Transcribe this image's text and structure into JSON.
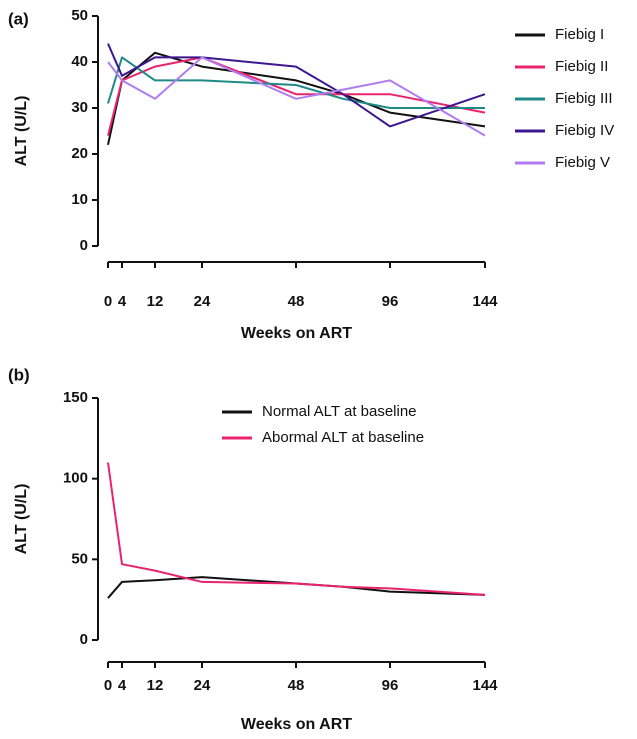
{
  "chart_data": [
    {
      "type": "line",
      "panel_label": "(a)",
      "xlabel": "Weeks on ART",
      "ylabel": "ALT (U/L)",
      "x": [
        0,
        4,
        12,
        24,
        48,
        72,
        96,
        144
      ],
      "xlim": [
        0,
        144
      ],
      "xticks": [
        0,
        4,
        12,
        24,
        48,
        96,
        144
      ],
      "ylim": [
        0,
        50
      ],
      "yticks": [
        0,
        10,
        20,
        30,
        40,
        50
      ],
      "series": [
        {
          "name": "Fiebig I",
          "color": "#111111",
          "values": [
            22,
            36,
            42,
            39,
            36,
            33,
            29,
            26
          ]
        },
        {
          "name": "Fiebig II",
          "color": "#e8246e",
          "values": [
            24,
            36,
            39,
            41,
            33,
            33,
            33,
            29
          ]
        },
        {
          "name": "Fiebig III",
          "color": "#1e8a86",
          "values": [
            31,
            41,
            36,
            36,
            35,
            32,
            30,
            30
          ]
        },
        {
          "name": "Fiebig IV",
          "color": "#3d1690",
          "values": [
            44,
            37,
            41,
            41,
            39,
            33,
            26,
            33
          ]
        },
        {
          "name": "Fiebig V",
          "color": "#b07cf0",
          "values": [
            40,
            36,
            32,
            41,
            32,
            34,
            36,
            24
          ]
        }
      ]
    },
    {
      "type": "line",
      "panel_label": "(b)",
      "xlabel": "Weeks on ART",
      "ylabel": "ALT (U/L)",
      "x": [
        0,
        4,
        12,
        24,
        48,
        72,
        96,
        144
      ],
      "xlim": [
        0,
        144
      ],
      "xticks": [
        0,
        4,
        12,
        24,
        48,
        96,
        144
      ],
      "ylim": [
        0,
        150
      ],
      "yticks": [
        0,
        50,
        100,
        150
      ],
      "series": [
        {
          "name": "Normal ALT at baseline",
          "color": "#111111",
          "values": [
            26,
            36,
            37,
            39,
            35,
            33,
            30,
            28
          ]
        },
        {
          "name": "Abormal ALT at baseline",
          "color": "#e8246e",
          "values": [
            110,
            47,
            43,
            36,
            35,
            33,
            32,
            28
          ]
        }
      ]
    }
  ]
}
